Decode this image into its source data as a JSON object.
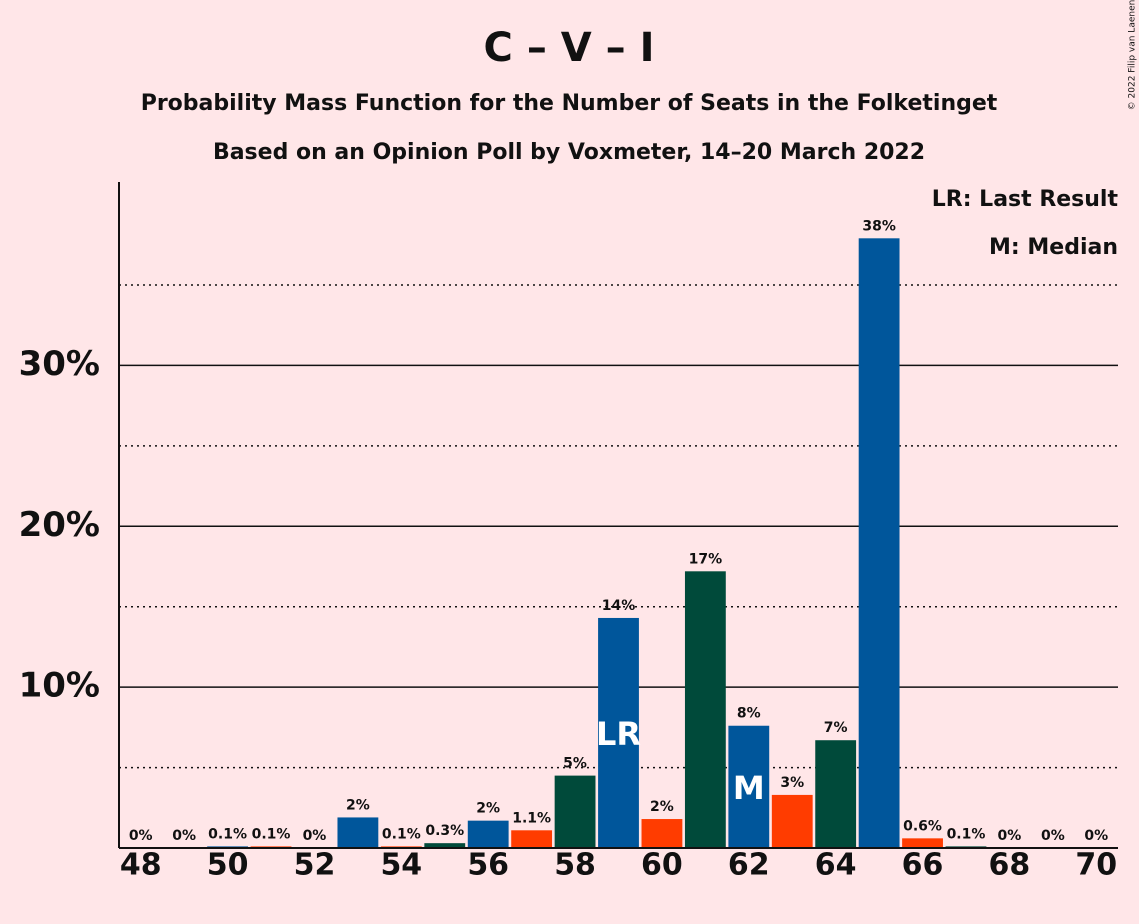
{
  "chart_data": {
    "type": "bar",
    "title": "C – V – I",
    "subtitle": "Probability Mass Function for the Number of Seats in the Folketinget",
    "subtitle2": "Based on an Opinion Poll by Voxmeter, 14–20 March 2022",
    "copyright": "© 2022 Filip van Laenen",
    "categories": [
      48,
      null,
      50,
      null,
      52,
      null,
      54,
      null,
      56,
      null,
      58,
      null,
      60,
      null,
      62,
      null,
      64,
      null,
      66,
      null,
      68,
      null,
      70
    ],
    "values": [
      0,
      0,
      0.1,
      0.1,
      0,
      1.9,
      0.1,
      0.3,
      1.7,
      1.1,
      4.5,
      14.3,
      1.8,
      17.2,
      7.6,
      3.3,
      6.7,
      37.9,
      0.6,
      0.1,
      0,
      0,
      0
    ],
    "value_labels": [
      "0%",
      "0%",
      "0.1%",
      "0.1%",
      "0%",
      "2%",
      "0.1%",
      "0.3%",
      "2%",
      "1.1%",
      "5%",
      "14%",
      "2%",
      "17%",
      "8%",
      "3%",
      "7%",
      "38%",
      "0.6%",
      "0.1%",
      "0%",
      "0%",
      "0%"
    ],
    "colors": [
      "#ff3c00",
      "#004a3a",
      "#00569b",
      "#ff3c00",
      "#004a3a",
      "#00569b",
      "#ff3c00",
      "#004a3a",
      "#00569b",
      "#ff3c00",
      "#004a3a",
      "#00569b",
      "#ff3c00",
      "#004a3a",
      "#00569b",
      "#ff3c00",
      "#004a3a",
      "#00569b",
      "#ff3c00",
      "#004a3a",
      "#00569b",
      "#ff3c00",
      "#004a3a"
    ],
    "ylim": [
      0,
      41.4
    ],
    "yticks": [
      {
        "value": 10,
        "label": "10%"
      },
      {
        "value": 20,
        "label": "20%"
      },
      {
        "value": 30,
        "label": "30%"
      }
    ],
    "minor_yticks": [
      5,
      15,
      25,
      35
    ],
    "annotations": [
      {
        "label": "LR",
        "index": 11
      },
      {
        "label": "M",
        "index": 14
      }
    ],
    "legend": [
      "LR: Last Result",
      "M: Median"
    ]
  }
}
